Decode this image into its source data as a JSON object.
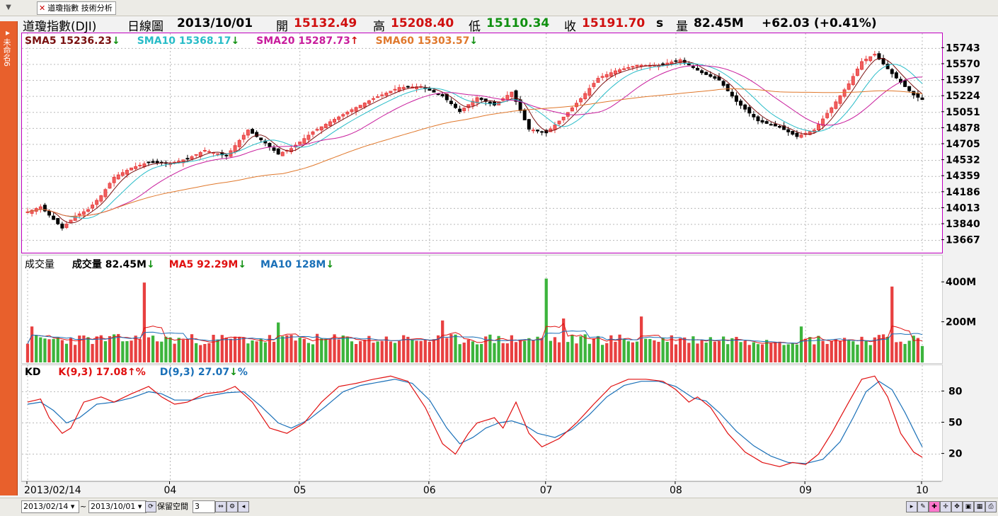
{
  "window": {
    "tab_label": "道瓊指數 技術分析",
    "side_label": "未命名6"
  },
  "header": {
    "symbol": "道瓊指數(DJI)",
    "period": "日線圖",
    "date": "2013/10/01",
    "open_label": "開",
    "open": "15132.49",
    "high_label": "高",
    "high": "15208.40",
    "low_label": "低",
    "low": "15110.34",
    "close_label": "收",
    "close": "15191.70",
    "close_suffix": "s",
    "volume_label": "量",
    "volume": "82.45M",
    "change": "+62.03 (+0.41%)"
  },
  "price_legend": [
    {
      "name": "SMA5",
      "value": "15236.23",
      "arrow": "down",
      "color": "#7a1010"
    },
    {
      "name": "SMA10",
      "value": "15368.17",
      "arrow": "down",
      "color": "#28bcc8"
    },
    {
      "name": "SMA20",
      "value": "15287.73",
      "arrow": "up",
      "color": "#c81c9c"
    },
    {
      "name": "SMA60",
      "value": "15303.57",
      "arrow": "down",
      "color": "#e0782c"
    }
  ],
  "volume_legend": {
    "panel_label": "成交量",
    "items": [
      {
        "name": "成交量",
        "value": "82.45M",
        "arrow": "down",
        "color": "#000000"
      },
      {
        "name": "MA5",
        "value": "92.29M",
        "arrow": "down",
        "color": "#e01010"
      },
      {
        "name": "MA10",
        "value": "128M",
        "arrow": "down",
        "color": "#1a70b8"
      }
    ]
  },
  "kd_legend": {
    "panel_label": "KD",
    "items": [
      {
        "name": "K(9,3)",
        "value": "17.08",
        "arrow": "up",
        "suffix": "%",
        "color": "#e01010"
      },
      {
        "name": "D(9,3)",
        "value": "27.07",
        "arrow": "down",
        "suffix": "%",
        "color": "#1a70b8"
      }
    ]
  },
  "footer": {
    "start_date": "2013/02/14",
    "tilde": "~",
    "end_date": "2013/10/01",
    "reserve_label": "保留空間",
    "reserve_value": "3"
  },
  "colors": {
    "up": "#e84040",
    "down": "#000000",
    "vol_up": "#e84040",
    "vol_down": "#3cb43c",
    "grid": "#b8b8b8",
    "border": "#c000c0"
  },
  "chart_data": [
    {
      "type": "candlestick",
      "title": "道瓊指數(DJI) 日線圖",
      "ylim": [
        13580,
        15830
      ],
      "y_ticks": [
        15743,
        15570,
        15397,
        15224,
        15051,
        14878,
        14705,
        14532,
        14359,
        14186,
        14013,
        13840,
        13667
      ],
      "x_ticks": [
        {
          "i": 0,
          "label": "2013/02/14"
        },
        {
          "i": 33,
          "label": "04"
        },
        {
          "i": 63,
          "label": "05"
        },
        {
          "i": 93,
          "label": "06"
        },
        {
          "i": 120,
          "label": "07"
        },
        {
          "i": 150,
          "label": "08"
        },
        {
          "i": 180,
          "label": "09"
        },
        {
          "i": 207,
          "label": "10"
        }
      ],
      "n_bars": 208,
      "anchors": [
        [
          0,
          13975
        ],
        [
          3,
          14030
        ],
        [
          5,
          13940
        ],
        [
          8,
          13800
        ],
        [
          11,
          13930
        ],
        [
          14,
          14000
        ],
        [
          17,
          14150
        ],
        [
          20,
          14350
        ],
        [
          24,
          14450
        ],
        [
          28,
          14510
        ],
        [
          33,
          14500
        ],
        [
          37,
          14550
        ],
        [
          41,
          14640
        ],
        [
          46,
          14580
        ],
        [
          51,
          14860
        ],
        [
          55,
          14720
        ],
        [
          58,
          14600
        ],
        [
          61,
          14660
        ],
        [
          66,
          14840
        ],
        [
          70,
          14950
        ],
        [
          75,
          15080
        ],
        [
          80,
          15200
        ],
        [
          86,
          15320
        ],
        [
          91,
          15330
        ],
        [
          96,
          15230
        ],
        [
          100,
          15060
        ],
        [
          104,
          15210
        ],
        [
          108,
          15130
        ],
        [
          112,
          15270
        ],
        [
          116,
          14870
        ],
        [
          120,
          14830
        ],
        [
          124,
          15000
        ],
        [
          128,
          15200
        ],
        [
          132,
          15420
        ],
        [
          136,
          15500
        ],
        [
          141,
          15560
        ],
        [
          146,
          15560
        ],
        [
          151,
          15620
        ],
        [
          156,
          15480
        ],
        [
          160,
          15400
        ],
        [
          164,
          15170
        ],
        [
          169,
          14960
        ],
        [
          174,
          14890
        ],
        [
          178,
          14790
        ],
        [
          182,
          14860
        ],
        [
          186,
          15100
        ],
        [
          190,
          15360
        ],
        [
          193,
          15600
        ],
        [
          196,
          15680
        ],
        [
          200,
          15470
        ],
        [
          203,
          15330
        ],
        [
          205,
          15240
        ],
        [
          207,
          15190
        ]
      ],
      "series": [
        {
          "name": "SMA5",
          "period": 5
        },
        {
          "name": "SMA10",
          "period": 10
        },
        {
          "name": "SMA20",
          "period": 20
        },
        {
          "name": "SMA60",
          "period": 60
        }
      ]
    },
    {
      "type": "bar",
      "title": "成交量",
      "ylim": [
        0,
        500
      ],
      "y_ticks": [
        {
          "v": 400,
          "label": "400M"
        },
        {
          "v": 200,
          "label": "200M"
        }
      ],
      "base": 115,
      "spikes": [
        [
          1,
          180
        ],
        [
          27,
          400
        ],
        [
          58,
          200
        ],
        [
          96,
          210
        ],
        [
          120,
          420
        ],
        [
          124,
          220
        ],
        [
          142,
          230
        ],
        [
          179,
          180
        ],
        [
          200,
          380
        ],
        [
          207,
          82
        ]
      ],
      "series": [
        {
          "name": "MA5",
          "period": 5
        },
        {
          "name": "MA10",
          "period": 10
        }
      ]
    },
    {
      "type": "line",
      "title": "KD",
      "ylim": [
        0,
        100
      ],
      "y_ticks": [
        80,
        50,
        20
      ],
      "k_anchors": [
        [
          0,
          70
        ],
        [
          3,
          73
        ],
        [
          5,
          55
        ],
        [
          8,
          40
        ],
        [
          10,
          45
        ],
        [
          13,
          70
        ],
        [
          17,
          75
        ],
        [
          20,
          70
        ],
        [
          24,
          78
        ],
        [
          28,
          85
        ],
        [
          31,
          75
        ],
        [
          34,
          68
        ],
        [
          37,
          70
        ],
        [
          41,
          78
        ],
        [
          45,
          80
        ],
        [
          48,
          85
        ],
        [
          52,
          70
        ],
        [
          56,
          45
        ],
        [
          60,
          40
        ],
        [
          64,
          50
        ],
        [
          68,
          70
        ],
        [
          72,
          85
        ],
        [
          76,
          88
        ],
        [
          80,
          92
        ],
        [
          84,
          95
        ],
        [
          88,
          90
        ],
        [
          92,
          65
        ],
        [
          96,
          30
        ],
        [
          99,
          20
        ],
        [
          102,
          40
        ],
        [
          104,
          50
        ],
        [
          108,
          55
        ],
        [
          110,
          45
        ],
        [
          113,
          70
        ],
        [
          116,
          40
        ],
        [
          119,
          27
        ],
        [
          123,
          35
        ],
        [
          127,
          50
        ],
        [
          131,
          68
        ],
        [
          135,
          85
        ],
        [
          139,
          92
        ],
        [
          143,
          92
        ],
        [
          147,
          90
        ],
        [
          150,
          82
        ],
        [
          153,
          70
        ],
        [
          155,
          75
        ],
        [
          158,
          65
        ],
        [
          162,
          40
        ],
        [
          166,
          22
        ],
        [
          170,
          12
        ],
        [
          174,
          8
        ],
        [
          177,
          12
        ],
        [
          180,
          10
        ],
        [
          183,
          20
        ],
        [
          186,
          40
        ],
        [
          190,
          70
        ],
        [
          193,
          92
        ],
        [
          196,
          95
        ],
        [
          199,
          75
        ],
        [
          202,
          40
        ],
        [
          205,
          22
        ],
        [
          207,
          17
        ]
      ],
      "d_anchors": [
        [
          0,
          68
        ],
        [
          3,
          70
        ],
        [
          6,
          62
        ],
        [
          9,
          50
        ],
        [
          12,
          55
        ],
        [
          16,
          68
        ],
        [
          20,
          70
        ],
        [
          24,
          74
        ],
        [
          28,
          80
        ],
        [
          31,
          78
        ],
        [
          34,
          72
        ],
        [
          38,
          72
        ],
        [
          42,
          76
        ],
        [
          46,
          79
        ],
        [
          50,
          80
        ],
        [
          54,
          66
        ],
        [
          58,
          50
        ],
        [
          61,
          45
        ],
        [
          65,
          53
        ],
        [
          69,
          66
        ],
        [
          73,
          80
        ],
        [
          77,
          86
        ],
        [
          81,
          89
        ],
        [
          85,
          92
        ],
        [
          89,
          88
        ],
        [
          93,
          72
        ],
        [
          97,
          45
        ],
        [
          100,
          30
        ],
        [
          103,
          36
        ],
        [
          106,
          45
        ],
        [
          109,
          50
        ],
        [
          112,
          52
        ],
        [
          115,
          48
        ],
        [
          118,
          40
        ],
        [
          122,
          36
        ],
        [
          126,
          44
        ],
        [
          130,
          58
        ],
        [
          134,
          75
        ],
        [
          138,
          86
        ],
        [
          142,
          90
        ],
        [
          146,
          90
        ],
        [
          150,
          85
        ],
        [
          154,
          74
        ],
        [
          157,
          71
        ],
        [
          160,
          60
        ],
        [
          164,
          42
        ],
        [
          168,
          28
        ],
        [
          172,
          18
        ],
        [
          176,
          12
        ],
        [
          180,
          11
        ],
        [
          184,
          15
        ],
        [
          188,
          32
        ],
        [
          191,
          55
        ],
        [
          194,
          80
        ],
        [
          197,
          90
        ],
        [
          200,
          82
        ],
        [
          203,
          60
        ],
        [
          206,
          35
        ],
        [
          207,
          27
        ]
      ]
    }
  ]
}
